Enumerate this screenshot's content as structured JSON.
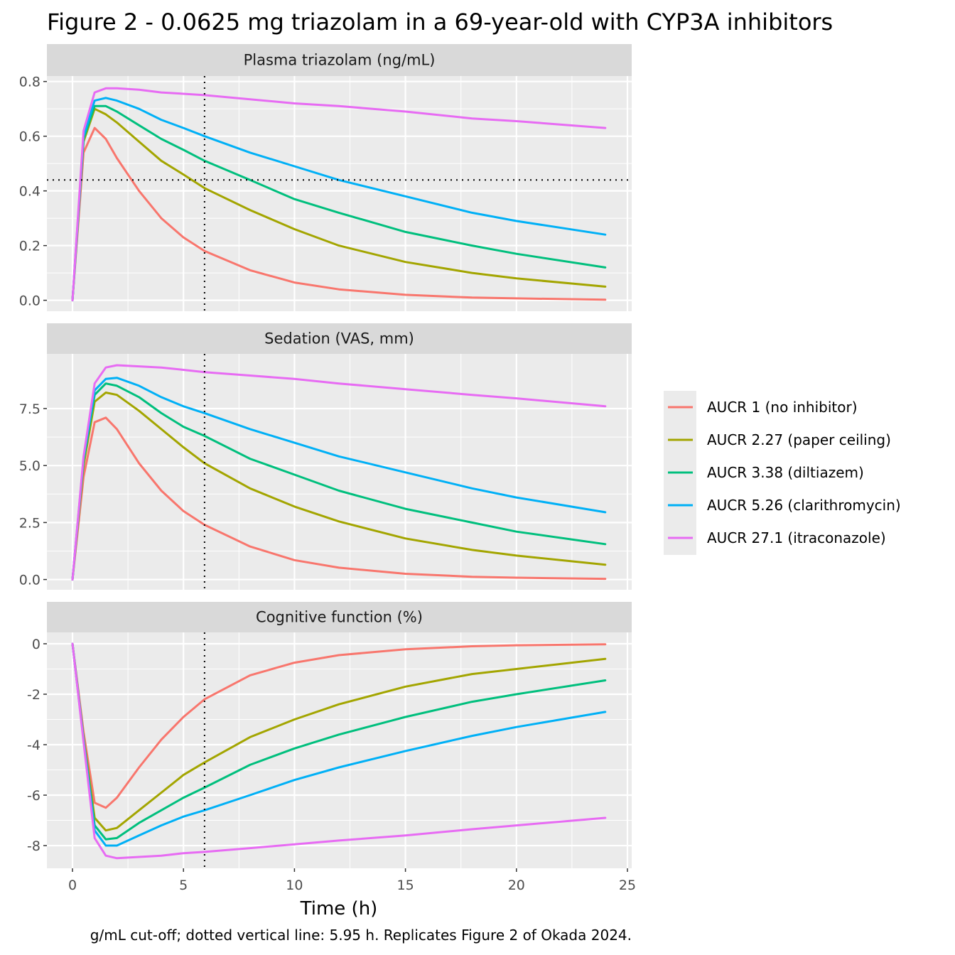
{
  "chart_data": {
    "type": "line",
    "title": "Figure 2 - 0.0625 mg triazolam in a 69-year-old with CYP3A inhibitors",
    "caption": "g/mL cut-off; dotted vertical line: 5.95 h. Replicates Figure 2 of Okada 2024.",
    "xlabel": "Time (h)",
    "xlim": [
      0,
      25
    ],
    "x_ticks": [
      0,
      5,
      10,
      15,
      20,
      25
    ],
    "vline": 5.95,
    "legend_position": "right",
    "colors": [
      "#F8766D",
      "#A3A500",
      "#00BF7D",
      "#00B0F6",
      "#E76BF3"
    ],
    "series_names": [
      "AUCR 1 (no inhibitor)",
      "AUCR 2.27 (paper ceiling)",
      "AUCR 3.38 (diltiazem)",
      "AUCR 5.26 (clarithromycin)",
      "AUCR 27.1 (itraconazole)"
    ],
    "panels": [
      {
        "strip": "Plasma triazolam (ng/mL)",
        "ylim": [
          -0.04,
          0.82
        ],
        "y_ticks": [
          0.0,
          0.2,
          0.4,
          0.6,
          0.8
        ],
        "y_tick_labels": [
          "0.0",
          "0.2",
          "0.4",
          "0.6",
          "0.8"
        ],
        "hline": 0.44,
        "x": [
          0,
          0.5,
          1,
          1.5,
          2,
          3,
          4,
          5,
          5.95,
          8,
          10,
          12,
          15,
          18,
          20,
          24
        ],
        "series": [
          [
            0.0,
            0.54,
            0.63,
            0.59,
            0.52,
            0.4,
            0.3,
            0.23,
            0.18,
            0.11,
            0.065,
            0.04,
            0.02,
            0.01,
            0.007,
            0.002
          ],
          [
            0.0,
            0.58,
            0.7,
            0.68,
            0.65,
            0.58,
            0.51,
            0.46,
            0.41,
            0.33,
            0.26,
            0.2,
            0.14,
            0.1,
            0.08,
            0.05
          ],
          [
            0.0,
            0.59,
            0.71,
            0.71,
            0.69,
            0.64,
            0.59,
            0.55,
            0.51,
            0.44,
            0.37,
            0.32,
            0.25,
            0.2,
            0.17,
            0.12
          ],
          [
            0.0,
            0.6,
            0.73,
            0.74,
            0.73,
            0.7,
            0.66,
            0.63,
            0.6,
            0.54,
            0.49,
            0.44,
            0.38,
            0.32,
            0.29,
            0.24
          ],
          [
            0.0,
            0.62,
            0.76,
            0.775,
            0.775,
            0.77,
            0.76,
            0.755,
            0.75,
            0.735,
            0.72,
            0.71,
            0.69,
            0.665,
            0.655,
            0.63
          ]
        ]
      },
      {
        "strip": "Sedation (VAS, mm)",
        "ylim": [
          -0.45,
          9.9
        ],
        "y_ticks": [
          0.0,
          2.5,
          5.0,
          7.5
        ],
        "y_tick_labels": [
          "0.0",
          "2.5",
          "5.0",
          "7.5"
        ],
        "x": [
          0,
          0.5,
          1,
          1.5,
          2,
          3,
          4,
          5,
          5.95,
          8,
          10,
          12,
          15,
          18,
          20,
          24
        ],
        "series": [
          [
            0.0,
            4.5,
            6.9,
            7.1,
            6.6,
            5.1,
            3.9,
            3.0,
            2.4,
            1.45,
            0.85,
            0.52,
            0.25,
            0.12,
            0.08,
            0.03
          ],
          [
            0.0,
            5.0,
            7.8,
            8.2,
            8.1,
            7.4,
            6.6,
            5.8,
            5.1,
            4.0,
            3.2,
            2.55,
            1.8,
            1.3,
            1.05,
            0.65
          ],
          [
            0.0,
            5.2,
            8.1,
            8.6,
            8.5,
            8.0,
            7.3,
            6.7,
            6.3,
            5.3,
            4.6,
            3.9,
            3.1,
            2.5,
            2.1,
            1.55
          ],
          [
            0.0,
            5.3,
            8.3,
            8.8,
            8.85,
            8.5,
            8.0,
            7.6,
            7.3,
            6.6,
            6.0,
            5.4,
            4.7,
            4.0,
            3.6,
            2.95
          ],
          [
            0.0,
            5.4,
            8.6,
            9.3,
            9.4,
            9.35,
            9.3,
            9.2,
            9.1,
            8.95,
            8.8,
            8.6,
            8.35,
            8.1,
            7.95,
            7.6
          ]
        ]
      },
      {
        "strip": "Cognitive function (%)",
        "ylim": [
          -8.9,
          0.45
        ],
        "y_ticks": [
          0,
          -2,
          -4,
          -6,
          -8
        ],
        "y_tick_labels": [
          "0",
          "-2",
          "-4",
          "-6",
          "-8"
        ],
        "x": [
          0,
          0.5,
          1,
          1.5,
          2,
          3,
          4,
          5,
          5.95,
          8,
          10,
          12,
          15,
          18,
          20,
          24
        ],
        "series": [
          [
            0.0,
            -3.5,
            -6.3,
            -6.5,
            -6.1,
            -4.9,
            -3.8,
            -2.9,
            -2.2,
            -1.25,
            -0.75,
            -0.45,
            -0.22,
            -0.1,
            -0.06,
            -0.02
          ],
          [
            0.0,
            -3.7,
            -6.9,
            -7.4,
            -7.3,
            -6.6,
            -5.9,
            -5.2,
            -4.7,
            -3.7,
            -3.0,
            -2.4,
            -1.7,
            -1.2,
            -1.0,
            -0.6
          ],
          [
            0.0,
            -3.8,
            -7.2,
            -7.75,
            -7.7,
            -7.1,
            -6.6,
            -6.1,
            -5.7,
            -4.8,
            -4.15,
            -3.6,
            -2.9,
            -2.3,
            -2.0,
            -1.45
          ],
          [
            0.0,
            -3.8,
            -7.4,
            -8.0,
            -8.0,
            -7.6,
            -7.2,
            -6.85,
            -6.6,
            -6.0,
            -5.4,
            -4.9,
            -4.25,
            -3.65,
            -3.3,
            -2.7
          ],
          [
            0.0,
            -3.9,
            -7.7,
            -8.4,
            -8.5,
            -8.45,
            -8.4,
            -8.3,
            -8.25,
            -8.1,
            -7.95,
            -7.8,
            -7.6,
            -7.35,
            -7.2,
            -6.9
          ]
        ]
      }
    ]
  }
}
